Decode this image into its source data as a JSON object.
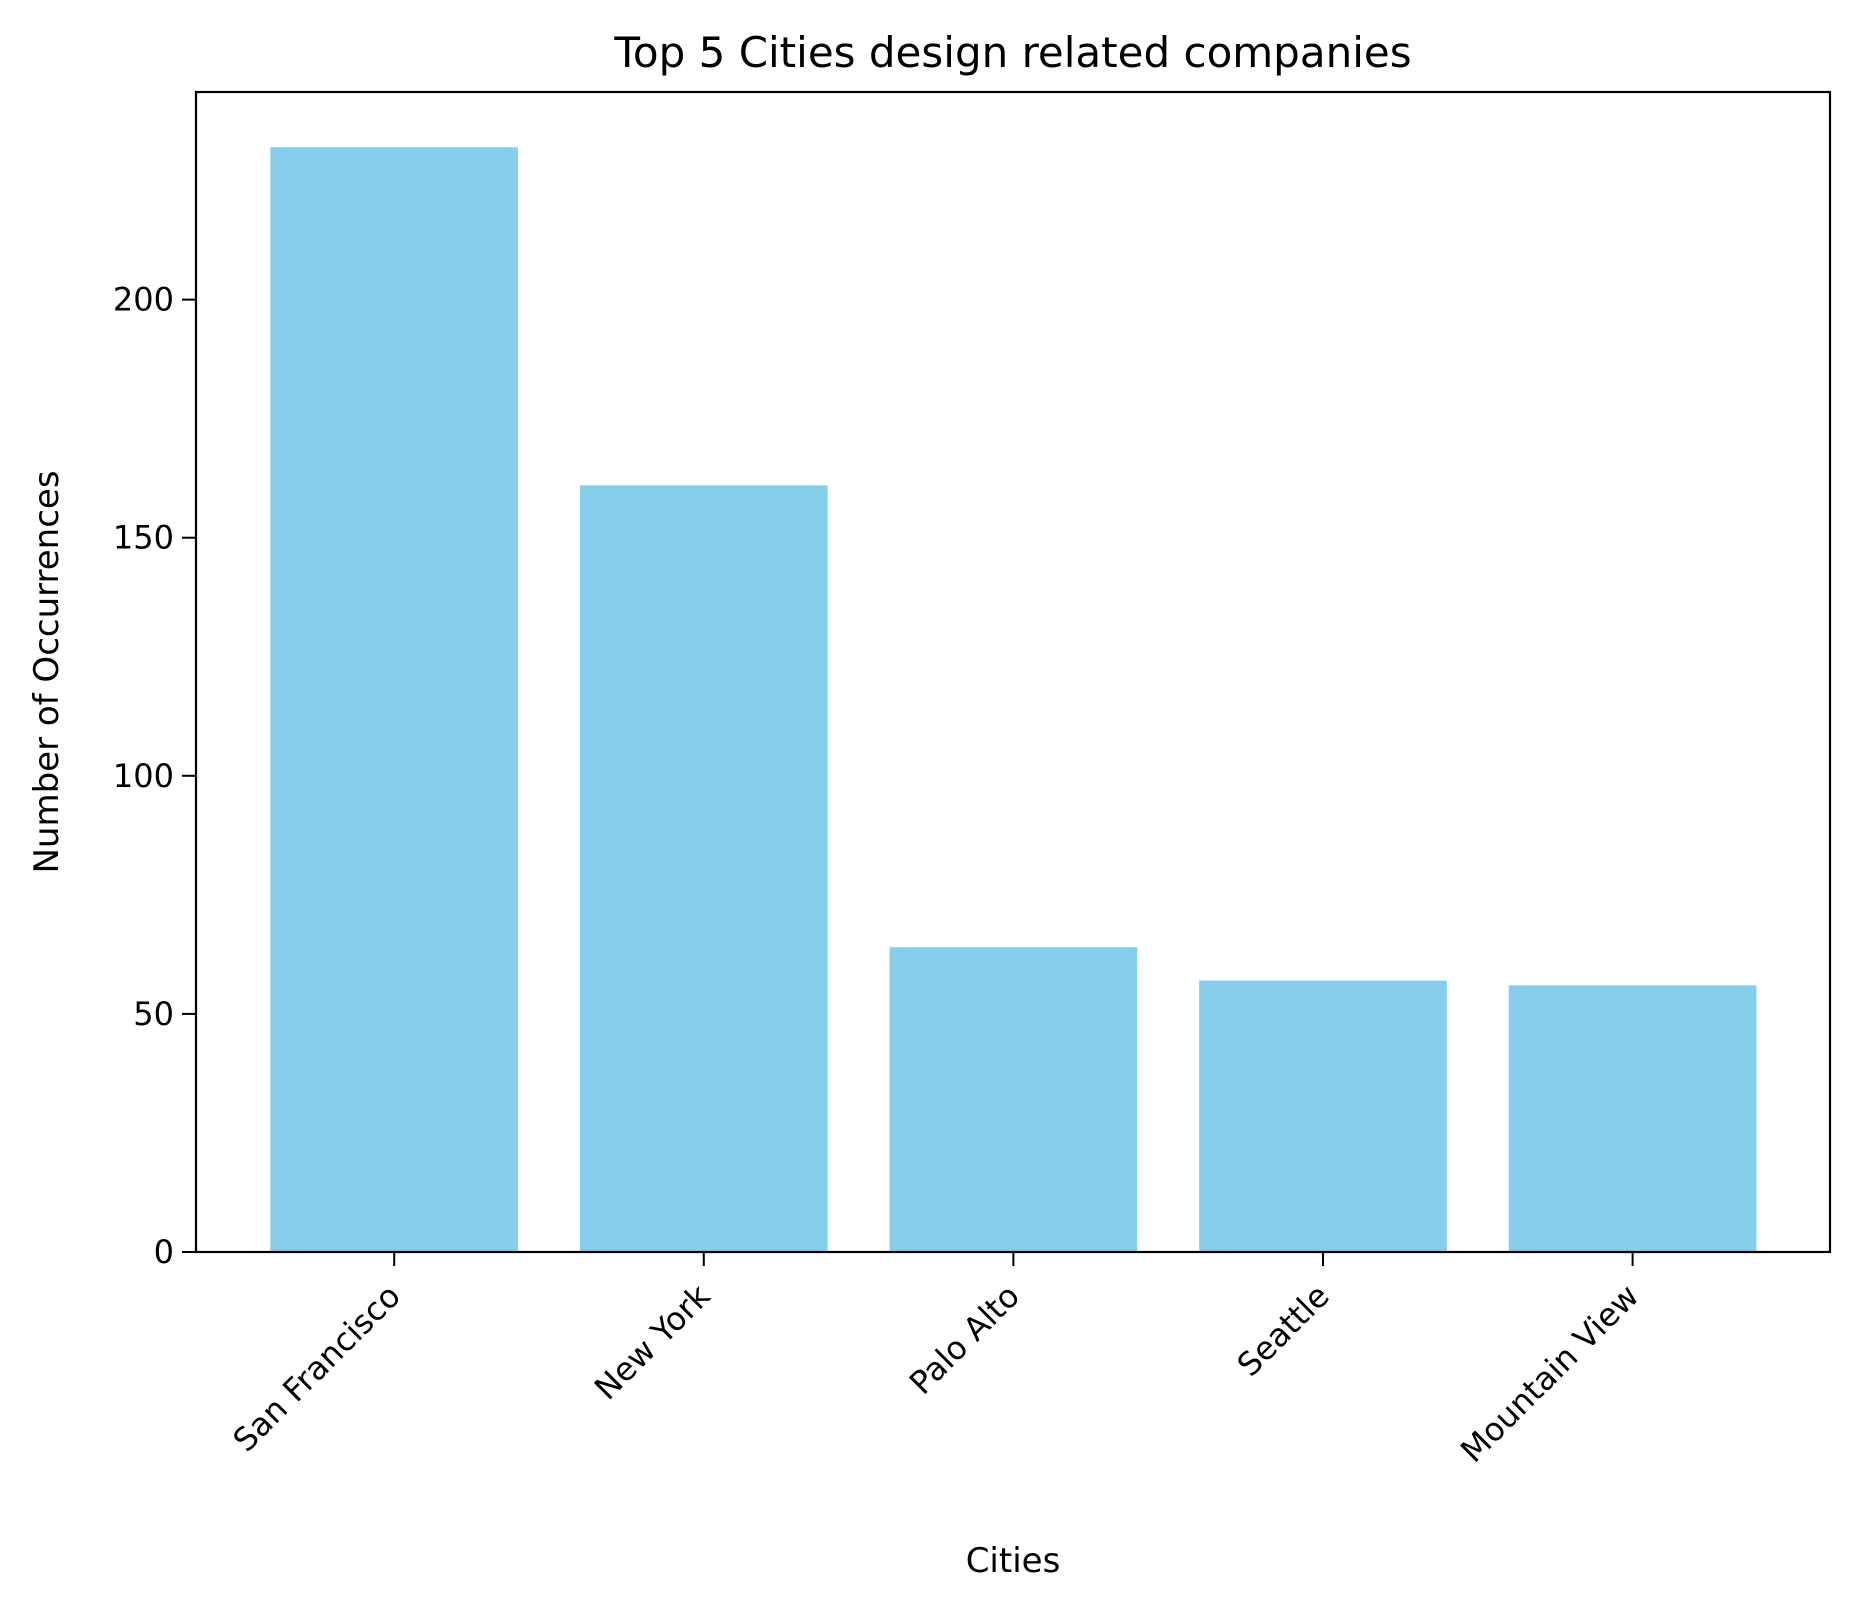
{
  "chart_data": {
    "type": "bar",
    "title": "Top 5 Cities design related companies",
    "xlabel": "Cities",
    "ylabel": "Number of Occurrences",
    "categories": [
      "San Francisco",
      "New York",
      "Palo Alto",
      "Seattle",
      "Mountain View"
    ],
    "values": [
      232,
      161,
      64,
      57,
      56
    ],
    "ylim": [
      0,
      243.6
    ],
    "yticks": [
      0,
      50,
      100,
      150,
      200
    ],
    "ytick_labels": [
      "0",
      "50",
      "100",
      "150",
      "200"
    ],
    "grid": false,
    "legend": "none",
    "bar_color": "#87ceeb"
  }
}
